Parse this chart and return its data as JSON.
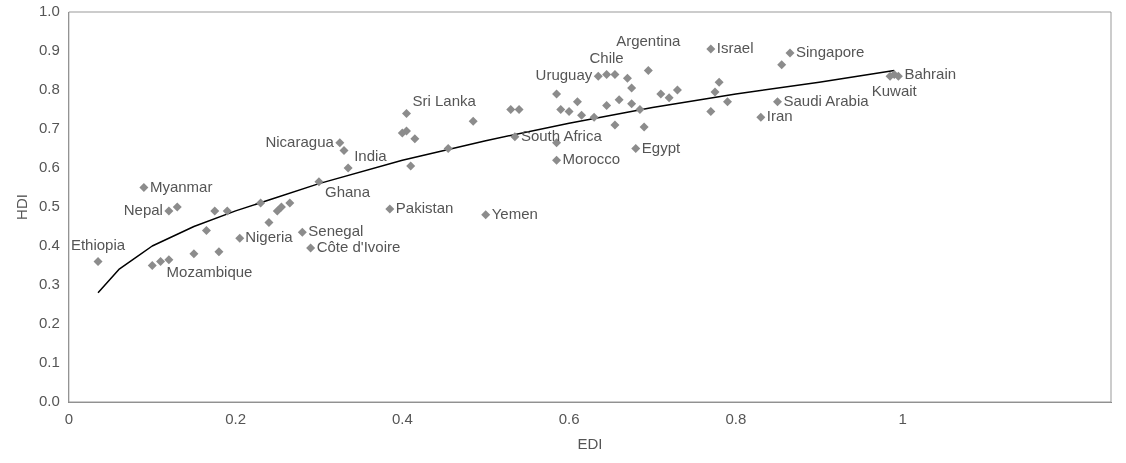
{
  "chart_data": {
    "type": "scatter",
    "xlabel": "EDI",
    "ylabel": "HDI",
    "xlim": [
      0,
      1.25
    ],
    "xticks": [
      0,
      0.2,
      0.4,
      0.6,
      0.8,
      1
    ],
    "ylim": [
      0,
      1
    ],
    "yticks": [
      {
        "value": 0,
        "label": "0.0"
      },
      0.1,
      0.2,
      0.3,
      0.4,
      0.5,
      0.6,
      0.7,
      0.8,
      0.9,
      {
        "value": 1,
        "label": "1.0"
      }
    ],
    "grid": false,
    "legend": false,
    "marker": "diamond",
    "series": [
      {
        "color": "#8c8c8c",
        "x": [
          0.035,
          0.09,
          0.12,
          0.13,
          0.1,
          0.11,
          0.12,
          0.15,
          0.18,
          0.165,
          0.175,
          0.19,
          0.205,
          0.23,
          0.24,
          0.25,
          0.255,
          0.265,
          0.28,
          0.29,
          0.3,
          0.335,
          0.325,
          0.33,
          0.385,
          0.405,
          0.4,
          0.405,
          0.415,
          0.41,
          0.455,
          0.485,
          0.53,
          0.54,
          0.535,
          0.5,
          0.585,
          0.585,
          0.585,
          0.59,
          0.6,
          0.61,
          0.615,
          0.63,
          0.645,
          0.655,
          0.66,
          0.635,
          0.645,
          0.655,
          0.67,
          0.675,
          0.675,
          0.685,
          0.68,
          0.69,
          0.695,
          0.71,
          0.72,
          0.73,
          0.77,
          0.775,
          0.78,
          0.79,
          0.77,
          0.83,
          0.85,
          0.855,
          0.865,
          0.985,
          0.99,
          0.995
        ],
        "values": [
          0.36,
          0.55,
          0.49,
          0.5,
          0.35,
          0.36,
          0.365,
          0.38,
          0.385,
          0.44,
          0.49,
          0.49,
          0.42,
          0.51,
          0.46,
          0.49,
          0.5,
          0.51,
          0.435,
          0.395,
          0.565,
          0.6,
          0.665,
          0.645,
          0.495,
          0.74,
          0.69,
          0.695,
          0.675,
          0.605,
          0.65,
          0.72,
          0.75,
          0.75,
          0.68,
          0.48,
          0.62,
          0.665,
          0.79,
          0.75,
          0.745,
          0.77,
          0.735,
          0.73,
          0.76,
          0.71,
          0.775,
          0.835,
          0.84,
          0.84,
          0.83,
          0.805,
          0.765,
          0.75,
          0.65,
          0.705,
          0.85,
          0.79,
          0.78,
          0.8,
          0.745,
          0.795,
          0.82,
          0.77,
          0.905,
          0.73,
          0.77,
          0.865,
          0.895,
          0.835,
          0.84,
          0.835
        ]
      },
      {
        "type": "line",
        "color": "#000000",
        "marker": "none",
        "x": [
          0.035,
          0.06,
          0.1,
          0.15,
          0.2,
          0.3,
          0.4,
          0.5,
          0.6,
          0.7,
          0.8,
          0.9,
          0.99
        ],
        "values": [
          0.28,
          0.34,
          0.4,
          0.45,
          0.49,
          0.56,
          0.62,
          0.67,
          0.715,
          0.755,
          0.79,
          0.82,
          0.85
        ]
      }
    ],
    "annotations": [
      {
        "text": "Ethiopia",
        "x": 0.035,
        "y": 0.36
      },
      {
        "text": "Myanmar",
        "x": 0.09,
        "y": 0.55
      },
      {
        "text": "Nepal",
        "x": 0.12,
        "y": 0.49
      },
      {
        "text": "Mozambique",
        "x": 0.11,
        "y": 0.36
      },
      {
        "text": "Nigeria",
        "x": 0.24,
        "y": 0.46
      },
      {
        "text": "Senegal",
        "x": 0.28,
        "y": 0.435
      },
      {
        "text": "Côte d'Ivoire",
        "x": 0.29,
        "y": 0.395
      },
      {
        "text": "Ghana",
        "x": 0.3,
        "y": 0.565
      },
      {
        "text": "India",
        "x": 0.335,
        "y": 0.6
      },
      {
        "text": "Nicaragua",
        "x": 0.325,
        "y": 0.665
      },
      {
        "text": "Pakistan",
        "x": 0.385,
        "y": 0.495
      },
      {
        "text": "Sri Lanka",
        "x": 0.405,
        "y": 0.74
      },
      {
        "text": "South Africa",
        "x": 0.535,
        "y": 0.68
      },
      {
        "text": "Yemen",
        "x": 0.5,
        "y": 0.48
      },
      {
        "text": "Morocco",
        "x": 0.585,
        "y": 0.62
      },
      {
        "text": "Egypt",
        "x": 0.68,
        "y": 0.65
      },
      {
        "text": "Uruguay",
        "x": 0.635,
        "y": 0.835
      },
      {
        "text": "Chile",
        "x": 0.645,
        "y": 0.84
      },
      {
        "text": "Argentina",
        "x": 0.695,
        "y": 0.85
      },
      {
        "text": "Israel",
        "x": 0.77,
        "y": 0.905
      },
      {
        "text": "Singapore",
        "x": 0.865,
        "y": 0.895
      },
      {
        "text": "Iran",
        "x": 0.83,
        "y": 0.73
      },
      {
        "text": "Saudi Arabia",
        "x": 0.85,
        "y": 0.77
      },
      {
        "text": "Bahrain",
        "x": 0.995,
        "y": 0.84
      },
      {
        "text": "Kuwait",
        "x": 0.99,
        "y": 0.835
      }
    ]
  }
}
